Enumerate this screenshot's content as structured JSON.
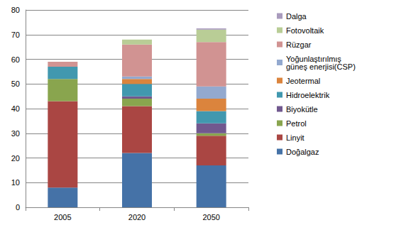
{
  "chart_data": {
    "type": "bar",
    "stacked": true,
    "grid": true,
    "legend": "right",
    "categories": [
      "2005",
      "2020",
      "2050"
    ],
    "ylim": [
      0,
      80
    ],
    "yticks": [
      0,
      10,
      20,
      30,
      40,
      50,
      60,
      70,
      80
    ],
    "series": [
      {
        "name": "Doğalgaz",
        "color": "#4572A7",
        "values": [
          8,
          22,
          17
        ]
      },
      {
        "name": "Linyit",
        "color": "#AA4643",
        "values": [
          35,
          19,
          12
        ]
      },
      {
        "name": "Petrol",
        "color": "#89A54E",
        "values": [
          9,
          3,
          1
        ]
      },
      {
        "name": "Biyokütle",
        "color": "#71588F",
        "values": [
          0,
          1,
          4
        ]
      },
      {
        "name": "Hidroelektrik",
        "color": "#4198AF",
        "values": [
          5,
          5,
          5
        ]
      },
      {
        "name": "Jeotermal",
        "color": "#DB843D",
        "values": [
          0,
          2,
          5
        ]
      },
      {
        "name": "Yoğunlaştırılmış güneş enerjisi(CSP)",
        "color": "#93A9CF",
        "values": [
          0,
          1,
          5
        ]
      },
      {
        "name": "Rüzgar",
        "color": "#D19392",
        "values": [
          2,
          13,
          18
        ]
      },
      {
        "name": "Fotovoltaik",
        "color": "#B9CD96",
        "values": [
          0,
          2,
          5
        ]
      },
      {
        "name": "Dalga",
        "color": "#A99BBD",
        "values": [
          0,
          0,
          0.5
        ]
      }
    ]
  }
}
